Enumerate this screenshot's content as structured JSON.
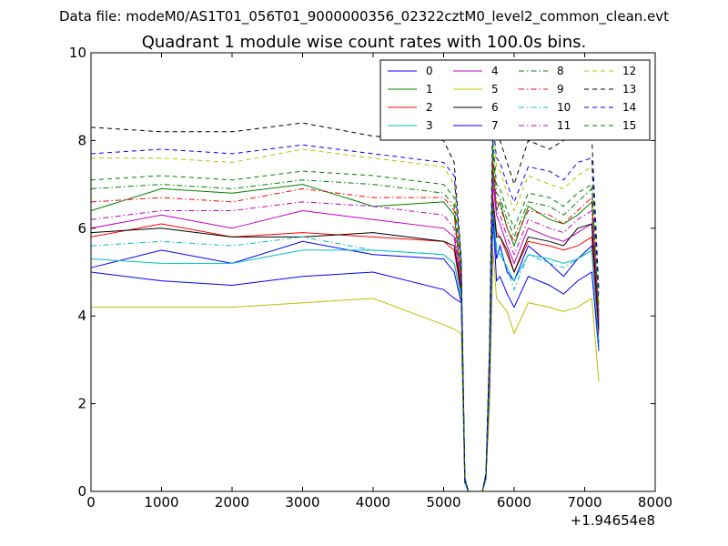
{
  "suptitle": "Data file: modeM0/AS1T01_056T01_9000000356_02322cztM0_level2_common_clean.evt",
  "chart_data": {
    "type": "line",
    "title": "Quadrant 1 module wise count rates with 100.0s bins.",
    "xlabel": "",
    "ylabel": "",
    "x_offset_label": "+1.94654e8",
    "xlim": [
      0,
      8000
    ],
    "ylim": [
      0,
      10
    ],
    "xticks": [
      0,
      1000,
      2000,
      3000,
      4000,
      5000,
      6000,
      7000,
      8000
    ],
    "yticks": [
      0,
      2,
      4,
      6,
      8,
      10
    ],
    "grid": false,
    "legend_position": "top-right",
    "legend_columns": 4,
    "x": [
      0,
      1000,
      2000,
      3000,
      4000,
      5000,
      5150,
      5250,
      5300,
      5350,
      5450,
      5550,
      5600,
      5650,
      5700,
      5750,
      5800,
      5900,
      6000,
      6200,
      6500,
      6700,
      6900,
      7100,
      7200
    ],
    "series": [
      {
        "name": "0",
        "color": "#0000ff",
        "style": "solid",
        "values": [
          5.1,
          5.5,
          5.2,
          5.7,
          5.4,
          5.3,
          5.0,
          4.3,
          0.2,
          0.0,
          0.0,
          0.0,
          0.3,
          2.5,
          6.6,
          5.3,
          5.6,
          5.0,
          4.8,
          5.6,
          5.2,
          4.9,
          5.3,
          5.6,
          3.4
        ]
      },
      {
        "name": "1",
        "color": "#008000",
        "style": "solid",
        "values": [
          6.4,
          6.9,
          6.8,
          7.0,
          6.5,
          6.6,
          6.3,
          4.8,
          0.3,
          0.0,
          0.0,
          0.0,
          0.4,
          2.9,
          7.4,
          6.4,
          6.6,
          6.0,
          5.6,
          6.5,
          6.2,
          6.1,
          6.3,
          6.6,
          4.0
        ]
      },
      {
        "name": "2",
        "color": "#ff0000",
        "style": "solid",
        "values": [
          5.8,
          6.1,
          5.8,
          5.9,
          5.8,
          5.7,
          5.5,
          4.5,
          0.3,
          0.0,
          0.0,
          0.0,
          0.3,
          2.7,
          6.7,
          5.9,
          5.8,
          5.4,
          5.0,
          5.7,
          5.6,
          5.5,
          5.6,
          5.8,
          3.6
        ]
      },
      {
        "name": "3",
        "color": "#00bfbf",
        "style": "solid",
        "values": [
          5.3,
          5.2,
          5.2,
          5.5,
          5.5,
          5.4,
          5.2,
          4.4,
          0.2,
          0.0,
          0.0,
          0.0,
          0.3,
          2.6,
          6.4,
          5.5,
          5.4,
          5.1,
          4.8,
          5.4,
          5.3,
          5.2,
          5.3,
          5.5,
          3.3
        ]
      },
      {
        "name": "4",
        "color": "#bf00bf",
        "style": "solid",
        "values": [
          6.0,
          6.3,
          6.0,
          6.4,
          6.2,
          6.0,
          5.8,
          4.7,
          0.3,
          0.0,
          0.0,
          0.0,
          0.4,
          2.8,
          7.0,
          6.3,
          6.1,
          5.6,
          5.2,
          6.0,
          5.8,
          5.7,
          5.9,
          6.1,
          3.8
        ]
      },
      {
        "name": "5",
        "color": "#bfbf00",
        "style": "solid",
        "values": [
          4.2,
          4.2,
          4.2,
          4.3,
          4.4,
          3.8,
          3.7,
          3.6,
          0.2,
          0.0,
          0.0,
          0.0,
          0.3,
          1.9,
          5.5,
          4.4,
          4.3,
          4.1,
          3.6,
          4.3,
          4.2,
          4.1,
          4.2,
          4.4,
          2.5
        ]
      },
      {
        "name": "6",
        "color": "#000000",
        "style": "solid",
        "values": [
          5.9,
          6.0,
          5.8,
          5.8,
          5.9,
          5.7,
          5.6,
          4.6,
          0.3,
          0.0,
          0.0,
          0.0,
          0.3,
          2.7,
          6.6,
          5.8,
          5.8,
          5.5,
          5.0,
          5.8,
          5.7,
          5.6,
          6.0,
          6.1,
          3.7
        ]
      },
      {
        "name": "7",
        "color": "#0000ff",
        "style": "solid",
        "values": [
          5.0,
          4.8,
          4.7,
          4.9,
          5.0,
          4.6,
          4.4,
          4.3,
          0.2,
          0.0,
          0.0,
          0.0,
          0.3,
          2.4,
          6.3,
          4.8,
          4.9,
          4.5,
          4.2,
          4.9,
          4.7,
          4.5,
          4.8,
          5.0,
          3.2
        ]
      },
      {
        "name": "8",
        "color": "#008000",
        "style": "dashdot",
        "values": [
          6.9,
          7.0,
          6.9,
          7.1,
          7.0,
          6.8,
          6.5,
          4.9,
          0.3,
          0.0,
          0.0,
          0.0,
          0.4,
          3.0,
          7.8,
          6.8,
          6.7,
          6.2,
          5.8,
          6.6,
          6.5,
          6.3,
          6.6,
          6.9,
          4.1
        ]
      },
      {
        "name": "9",
        "color": "#ff0000",
        "style": "dashdot",
        "values": [
          6.6,
          6.7,
          6.6,
          6.9,
          6.7,
          6.7,
          6.4,
          4.8,
          0.3,
          0.0,
          0.0,
          0.0,
          0.4,
          2.9,
          7.6,
          6.6,
          6.5,
          6.0,
          5.7,
          6.4,
          6.3,
          6.1,
          6.4,
          6.7,
          3.9
        ]
      },
      {
        "name": "10",
        "color": "#00bfbf",
        "style": "dashdot",
        "values": [
          5.6,
          5.7,
          5.6,
          5.8,
          5.5,
          5.4,
          5.2,
          4.5,
          0.2,
          0.0,
          0.0,
          0.0,
          0.3,
          2.6,
          6.5,
          5.6,
          5.5,
          5.1,
          4.6,
          5.4,
          5.2,
          5.1,
          5.3,
          5.5,
          3.3
        ]
      },
      {
        "name": "11",
        "color": "#bf00bf",
        "style": "dashdot",
        "values": [
          6.2,
          6.4,
          6.4,
          6.6,
          6.5,
          6.3,
          6.0,
          4.7,
          0.3,
          0.0,
          0.0,
          0.0,
          0.4,
          2.8,
          7.2,
          6.4,
          6.3,
          5.8,
          5.4,
          6.2,
          6.0,
          5.9,
          6.2,
          6.4,
          3.9
        ]
      },
      {
        "name": "12",
        "color": "#bfbf00",
        "style": "dashed",
        "values": [
          7.6,
          7.6,
          7.5,
          7.8,
          7.6,
          7.4,
          7.0,
          5.1,
          0.3,
          0.0,
          0.0,
          0.0,
          0.4,
          3.2,
          8.3,
          7.4,
          7.3,
          6.8,
          6.4,
          7.2,
          7.0,
          6.9,
          7.2,
          7.4,
          4.3
        ]
      },
      {
        "name": "13",
        "color": "#000000",
        "style": "dashed",
        "values": [
          8.3,
          8.2,
          8.2,
          8.4,
          8.1,
          8.0,
          7.5,
          5.3,
          0.3,
          0.0,
          0.0,
          0.0,
          0.4,
          3.3,
          9.1,
          8.1,
          8.0,
          7.5,
          7.0,
          8.0,
          7.8,
          8.0,
          8.2,
          8.1,
          4.6
        ]
      },
      {
        "name": "14",
        "color": "#0000ff",
        "style": "dashed",
        "values": [
          7.7,
          7.8,
          7.7,
          7.9,
          7.7,
          7.5,
          7.2,
          5.2,
          0.3,
          0.0,
          0.0,
          0.0,
          0.4,
          3.2,
          8.4,
          7.6,
          7.5,
          7.0,
          6.6,
          7.4,
          7.3,
          7.1,
          7.5,
          7.6,
          4.4
        ]
      },
      {
        "name": "15",
        "color": "#008000",
        "style": "dashed",
        "values": [
          7.1,
          7.2,
          7.1,
          7.3,
          7.2,
          7.0,
          6.7,
          5.0,
          0.3,
          0.0,
          0.0,
          0.0,
          0.4,
          3.1,
          8.0,
          7.0,
          6.9,
          6.4,
          6.0,
          6.8,
          6.7,
          6.5,
          6.8,
          7.0,
          4.2
        ]
      }
    ]
  }
}
